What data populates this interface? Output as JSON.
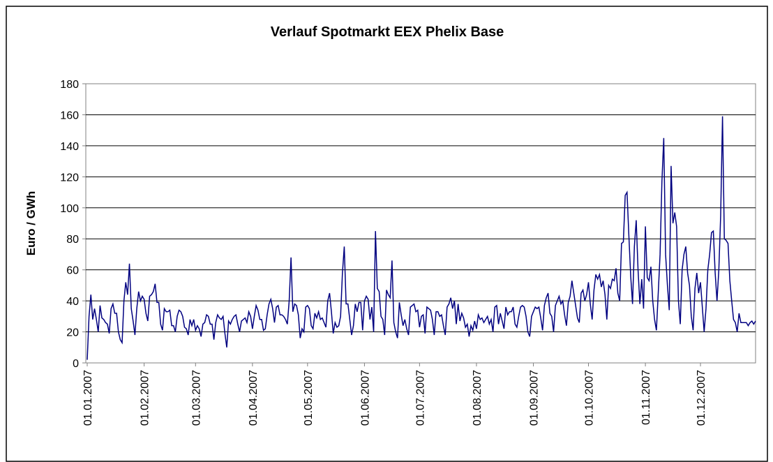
{
  "chart_data": {
    "type": "line",
    "title": "Verlauf Spotmarkt EEX Phelix Base",
    "ylabel": "Euro / GWh",
    "x": [
      "01.01.2007",
      "02.01.2007",
      "03.01.2007",
      "04.01.2007",
      "05.01.2007",
      "06.01.2007",
      "07.01.2007",
      "08.01.2007",
      "09.01.2007",
      "10.01.2007",
      "11.01.2007",
      "12.01.2007",
      "13.01.2007",
      "14.01.2007",
      "15.01.2007",
      "16.01.2007",
      "17.01.2007",
      "18.01.2007",
      "19.01.2007",
      "20.01.2007",
      "21.01.2007",
      "22.01.2007",
      "23.01.2007",
      "24.01.2007",
      "25.01.2007",
      "26.01.2007",
      "27.01.2007",
      "28.01.2007",
      "29.01.2007",
      "30.01.2007",
      "31.01.2007",
      "01.02.2007",
      "02.02.2007",
      "03.02.2007",
      "04.02.2007",
      "05.02.2007",
      "06.02.2007",
      "07.02.2007",
      "08.02.2007",
      "09.02.2007",
      "10.02.2007",
      "11.02.2007",
      "12.02.2007",
      "13.02.2007",
      "14.02.2007",
      "15.02.2007",
      "16.02.2007",
      "17.02.2007",
      "18.02.2007",
      "19.02.2007",
      "20.02.2007",
      "21.02.2007",
      "22.02.2007",
      "23.02.2007",
      "24.02.2007",
      "25.02.2007",
      "26.02.2007",
      "27.02.2007",
      "28.02.2007",
      "01.03.2007",
      "02.03.2007",
      "03.03.2007",
      "04.03.2007",
      "05.03.2007",
      "06.03.2007",
      "07.03.2007",
      "08.03.2007",
      "09.03.2007",
      "10.03.2007",
      "11.03.2007",
      "12.03.2007",
      "13.03.2007",
      "14.03.2007",
      "15.03.2007",
      "16.03.2007",
      "17.03.2007",
      "18.03.2007",
      "19.03.2007",
      "20.03.2007",
      "21.03.2007",
      "22.03.2007",
      "23.03.2007",
      "24.03.2007",
      "25.03.2007",
      "26.03.2007",
      "27.03.2007",
      "28.03.2007",
      "29.03.2007",
      "30.03.2007",
      "31.03.2007",
      "01.04.2007",
      "02.04.2007",
      "03.04.2007",
      "04.04.2007",
      "05.04.2007",
      "06.04.2007",
      "07.04.2007",
      "08.04.2007",
      "09.04.2007",
      "10.04.2007",
      "11.04.2007",
      "12.04.2007",
      "13.04.2007",
      "14.04.2007",
      "15.04.2007",
      "16.04.2007",
      "17.04.2007",
      "18.04.2007",
      "19.04.2007",
      "20.04.2007",
      "21.04.2007",
      "22.04.2007",
      "23.04.2007",
      "24.04.2007",
      "25.04.2007",
      "26.04.2007",
      "27.04.2007",
      "28.04.2007",
      "29.04.2007",
      "30.04.2007",
      "01.05.2007",
      "02.05.2007",
      "03.05.2007",
      "04.05.2007",
      "05.05.2007",
      "06.05.2007",
      "07.05.2007",
      "08.05.2007",
      "09.05.2007",
      "10.05.2007",
      "11.05.2007",
      "12.05.2007",
      "13.05.2007",
      "14.05.2007",
      "15.05.2007",
      "16.05.2007",
      "17.05.2007",
      "18.05.2007",
      "19.05.2007",
      "20.05.2007",
      "21.05.2007",
      "22.05.2007",
      "23.05.2007",
      "24.05.2007",
      "25.05.2007",
      "26.05.2007",
      "27.05.2007",
      "28.05.2007",
      "29.05.2007",
      "30.05.2007",
      "31.05.2007",
      "01.06.2007",
      "02.06.2007",
      "03.06.2007",
      "04.06.2007",
      "05.06.2007",
      "06.06.2007",
      "07.06.2007",
      "08.06.2007",
      "09.06.2007",
      "10.06.2007",
      "11.06.2007",
      "12.06.2007",
      "13.06.2007",
      "14.06.2007",
      "15.06.2007",
      "16.06.2007",
      "17.06.2007",
      "18.06.2007",
      "19.06.2007",
      "20.06.2007",
      "21.06.2007",
      "22.06.2007",
      "23.06.2007",
      "24.06.2007",
      "25.06.2007",
      "26.06.2007",
      "27.06.2007",
      "28.06.2007",
      "29.06.2007",
      "30.06.2007",
      "01.07.2007",
      "02.07.2007",
      "03.07.2007",
      "04.07.2007",
      "05.07.2007",
      "06.07.2007",
      "07.07.2007",
      "08.07.2007",
      "09.07.2007",
      "10.07.2007",
      "11.07.2007",
      "12.07.2007",
      "13.07.2007",
      "14.07.2007",
      "15.07.2007",
      "16.07.2007",
      "17.07.2007",
      "18.07.2007",
      "19.07.2007",
      "20.07.2007",
      "21.07.2007",
      "22.07.2007",
      "23.07.2007",
      "24.07.2007",
      "25.07.2007",
      "26.07.2007",
      "27.07.2007",
      "28.07.2007",
      "29.07.2007",
      "30.07.2007",
      "31.07.2007",
      "01.08.2007",
      "02.08.2007",
      "03.08.2007",
      "04.08.2007",
      "05.08.2007",
      "06.08.2007",
      "07.08.2007",
      "08.08.2007",
      "09.08.2007",
      "10.08.2007",
      "11.08.2007",
      "12.08.2007",
      "13.08.2007",
      "14.08.2007",
      "15.08.2007",
      "16.08.2007",
      "17.08.2007",
      "18.08.2007",
      "19.08.2007",
      "20.08.2007",
      "21.08.2007",
      "22.08.2007",
      "23.08.2007",
      "24.08.2007",
      "25.08.2007",
      "26.08.2007",
      "27.08.2007",
      "28.08.2007",
      "29.08.2007",
      "30.08.2007",
      "31.08.2007",
      "01.09.2007",
      "02.09.2007",
      "03.09.2007",
      "04.09.2007",
      "05.09.2007",
      "06.09.2007",
      "07.09.2007",
      "08.09.2007",
      "09.09.2007",
      "10.09.2007",
      "11.09.2007",
      "12.09.2007",
      "13.09.2007",
      "14.09.2007",
      "15.09.2007",
      "16.09.2007",
      "17.09.2007",
      "18.09.2007",
      "19.09.2007",
      "20.09.2007",
      "21.09.2007",
      "22.09.2007",
      "23.09.2007",
      "24.09.2007",
      "25.09.2007",
      "26.09.2007",
      "27.09.2007",
      "28.09.2007",
      "29.09.2007",
      "30.09.2007",
      "01.10.2007",
      "02.10.2007",
      "03.10.2007",
      "04.10.2007",
      "05.10.2007",
      "06.10.2007",
      "07.10.2007",
      "08.10.2007",
      "09.10.2007",
      "10.10.2007",
      "11.10.2007",
      "12.10.2007",
      "13.10.2007",
      "14.10.2007",
      "15.10.2007",
      "16.10.2007",
      "17.10.2007",
      "18.10.2007",
      "19.10.2007",
      "20.10.2007",
      "21.10.2007",
      "22.10.2007",
      "23.10.2007",
      "24.10.2007",
      "25.10.2007",
      "26.10.2007",
      "27.10.2007",
      "28.10.2007",
      "29.10.2007",
      "30.10.2007",
      "31.10.2007",
      "01.11.2007",
      "02.11.2007",
      "03.11.2007",
      "04.11.2007",
      "05.11.2007",
      "06.11.2007",
      "07.11.2007",
      "08.11.2007",
      "09.11.2007",
      "10.11.2007",
      "11.11.2007",
      "12.11.2007",
      "13.11.2007",
      "14.11.2007",
      "15.11.2007",
      "16.11.2007",
      "17.11.2007",
      "18.11.2007",
      "19.11.2007",
      "20.11.2007",
      "21.11.2007",
      "22.11.2007",
      "23.11.2007",
      "24.11.2007",
      "25.11.2007",
      "26.11.2007",
      "27.11.2007",
      "28.11.2007",
      "29.11.2007",
      "30.11.2007",
      "01.12.2007",
      "02.12.2007",
      "03.12.2007",
      "04.12.2007",
      "05.12.2007",
      "06.12.2007",
      "07.12.2007",
      "08.12.2007",
      "09.12.2007",
      "10.12.2007",
      "11.12.2007",
      "12.12.2007",
      "13.12.2007",
      "14.12.2007",
      "15.12.2007",
      "16.12.2007",
      "17.12.2007",
      "18.12.2007",
      "19.12.2007",
      "20.12.2007",
      "21.12.2007",
      "22.12.2007",
      "23.12.2007",
      "24.12.2007",
      "25.12.2007",
      "26.12.2007",
      "27.12.2007",
      "28.12.2007",
      "29.12.2007",
      "30.12.2007",
      "31.12.2007"
    ],
    "series": [
      {
        "name": "Phelix Base",
        "color": "#000080",
        "values": [
          2,
          30,
          44,
          28,
          35,
          28,
          20,
          37,
          29,
          28,
          26,
          25,
          19,
          35,
          38,
          32,
          32,
          20,
          15,
          13,
          40,
          52,
          44,
          64,
          35,
          27,
          18,
          35,
          46,
          40,
          43,
          41,
          32,
          27,
          43,
          44,
          46,
          51,
          39,
          39,
          25,
          21,
          35,
          33,
          33,
          34,
          24,
          24,
          20,
          30,
          34,
          33,
          30,
          23,
          22,
          18,
          28,
          24,
          28,
          21,
          24,
          22,
          17,
          25,
          26,
          31,
          30,
          25,
          25,
          15,
          26,
          31,
          29,
          28,
          30,
          19,
          10,
          27,
          25,
          28,
          30,
          31,
          25,
          20,
          27,
          28,
          29,
          26,
          33,
          30,
          22,
          30,
          37,
          34,
          28,
          28,
          21,
          22,
          31,
          38,
          41,
          35,
          26,
          36,
          37,
          31,
          31,
          30,
          28,
          25,
          40,
          68,
          33,
          38,
          37,
          31,
          16,
          22,
          20,
          36,
          37,
          35,
          24,
          22,
          32,
          29,
          33,
          28,
          29,
          26,
          23,
          40,
          45,
          33,
          19,
          26,
          23,
          24,
          30,
          58,
          75,
          38,
          38,
          28,
          18,
          24,
          38,
          33,
          39,
          39,
          21,
          40,
          43,
          41,
          28,
          36,
          20,
          85,
          48,
          46,
          30,
          28,
          18,
          47,
          44,
          42,
          66,
          26,
          20,
          16,
          39,
          31,
          24,
          28,
          22,
          18,
          36,
          37,
          38,
          33,
          34,
          23,
          30,
          31,
          19,
          36,
          35,
          34,
          28,
          18,
          33,
          33,
          30,
          31,
          24,
          18,
          36,
          38,
          42,
          35,
          40,
          25,
          38,
          27,
          32,
          29,
          23,
          25,
          17,
          24,
          21,
          27,
          22,
          31,
          28,
          29,
          26,
          28,
          30,
          25,
          28,
          20,
          36,
          37,
          25,
          32,
          27,
          22,
          36,
          31,
          33,
          33,
          36,
          25,
          23,
          30,
          36,
          37,
          36,
          30,
          20,
          17,
          30,
          33,
          36,
          35,
          36,
          29,
          21,
          37,
          42,
          45,
          32,
          30,
          20,
          37,
          40,
          43,
          38,
          40,
          31,
          24,
          39,
          43,
          53,
          45,
          37,
          29,
          26,
          45,
          47,
          40,
          44,
          52,
          38,
          28,
          47,
          57,
          54,
          57,
          49,
          53,
          44,
          28,
          50,
          48,
          54,
          53,
          61,
          45,
          40,
          77,
          78,
          108,
          110,
          82,
          56,
          38,
          75,
          92,
          60,
          38,
          54,
          35,
          88,
          55,
          53,
          62,
          40,
          28,
          21,
          45,
          70,
          117,
          145,
          70,
          50,
          34,
          127,
          90,
          97,
          88,
          40,
          25,
          60,
          70,
          75,
          58,
          50,
          30,
          21,
          48,
          58,
          45,
          52,
          36,
          20,
          35,
          60,
          70,
          84,
          85,
          58,
          40,
          60,
          95,
          159,
          80,
          79,
          77,
          53,
          40,
          28,
          26,
          20,
          32,
          26,
          26,
          26,
          26,
          24,
          26,
          27,
          25,
          27
        ]
      }
    ],
    "xlim": [
      "01.01.2007",
      "31.12.2007"
    ],
    "xticks": [
      "01.01.2007",
      "01.02.2007",
      "01.03.2007",
      "01.04.2007",
      "01.05.2007",
      "01.06.2007",
      "01.07.2007",
      "01.08.2007",
      "01.09.2007",
      "01.10.2007",
      "01.11.2007",
      "01.12.2007"
    ],
    "ylim": [
      0,
      180
    ],
    "yticks": [
      0,
      20,
      40,
      60,
      80,
      100,
      120,
      140,
      160,
      180
    ],
    "grid": true
  }
}
